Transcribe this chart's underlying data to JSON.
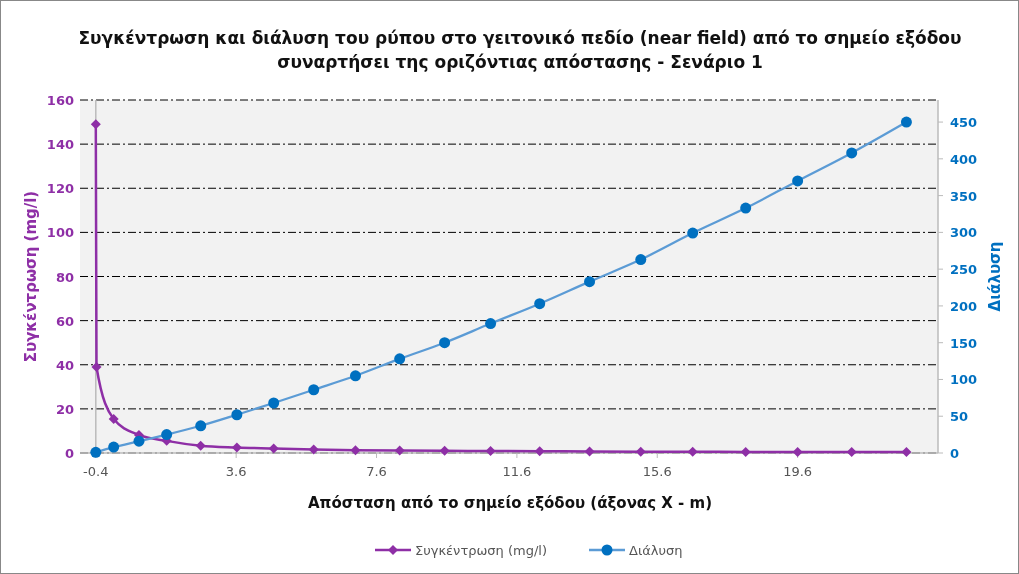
{
  "chart_data": {
    "type": "line",
    "title": "Συγκέντρωση και διάλυση του ρύπου στο γειτονικό πεδίο (near field) από το σημείο εξόδου συναρτήσει της οριζόντιας απόστασης - Σενάριο 1",
    "xlabel": "Απόσταση από το σημείο εξόδου (άξονας X - m)",
    "ylabel": "Συγκέντρωση (mg/l)",
    "y2label": "Διάλυση",
    "xlim": [
      -0.85,
      23.6
    ],
    "xticks": [
      -0.4,
      3.6,
      7.6,
      11.6,
      15.6,
      19.6
    ],
    "ylim": [
      0,
      160
    ],
    "yticks": [
      0,
      20,
      40,
      60,
      80,
      100,
      120,
      140,
      160
    ],
    "y2lim": [
      0,
      480
    ],
    "y2ticks": [
      0,
      50,
      100,
      150,
      200,
      250,
      300,
      350,
      400,
      450
    ],
    "grid": "y",
    "legend": "bottom",
    "ref_lines": [
      {
        "axis": "x",
        "value": -0.4,
        "color": "#bbbbbb"
      }
    ],
    "series": [
      {
        "name": "Συγκέντρωση (mg/l)",
        "color": "#8e2fa6",
        "marker": "diamond",
        "x": [
          -0.4,
          -0.38,
          0.11,
          0.83,
          1.62,
          2.59,
          3.62,
          4.67,
          5.81,
          7.0,
          8.26,
          9.54,
          10.85,
          12.25,
          13.67,
          15.13,
          16.61,
          18.12,
          19.6,
          21.14,
          22.7
        ],
        "values": [
          149,
          39,
          15.4,
          8.2,
          5.5,
          3.3,
          2.5,
          2.0,
          1.6,
          1.3,
          1.1,
          1.0,
          0.9,
          0.8,
          0.7,
          0.6,
          0.6,
          0.5,
          0.5,
          0.4,
          0.4
        ]
      },
      {
        "name": "Διάλυση",
        "color": "#0070c0",
        "marker": "circle",
        "axis": "y2",
        "x": [
          -0.4,
          0.11,
          0.83,
          1.62,
          2.59,
          3.62,
          4.67,
          5.81,
          7.0,
          8.26,
          9.54,
          10.85,
          12.25,
          13.67,
          15.13,
          16.61,
          18.12,
          19.6,
          21.14,
          22.7
        ],
        "values": [
          1,
          8,
          16,
          25,
          37,
          52,
          68,
          86,
          105,
          128,
          150,
          176,
          203,
          233,
          263,
          299,
          333,
          370,
          408,
          450
        ]
      }
    ]
  }
}
